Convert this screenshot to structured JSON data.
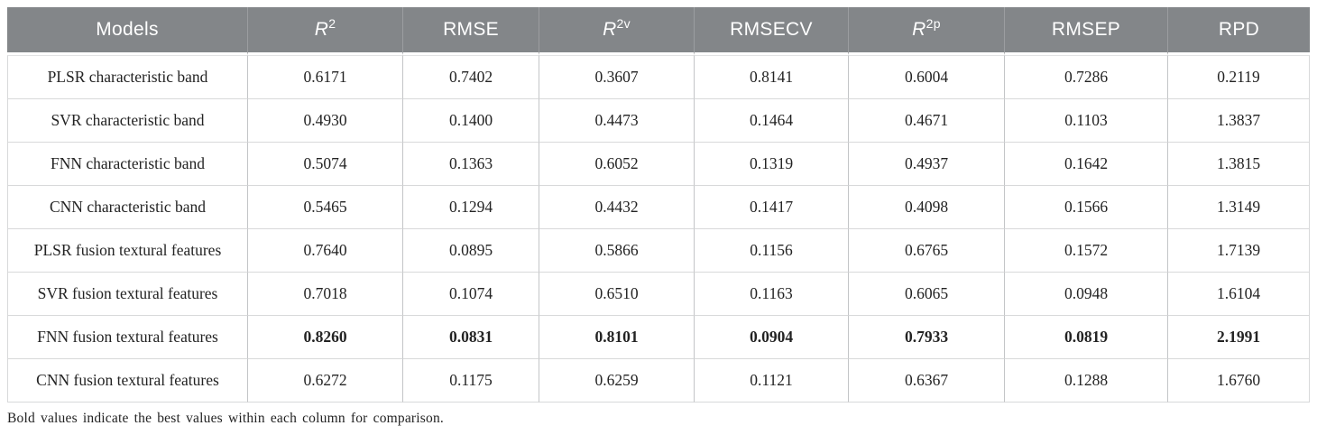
{
  "colors": {
    "header_bg": "#838689",
    "header_text": "#ffffff",
    "body_text": "#232323",
    "row_line": "#d8d9da",
    "column_line": "#c3c5c7"
  },
  "table": {
    "headers": [
      {
        "text": "Models",
        "sup": "",
        "italic": false
      },
      {
        "text": "R",
        "sup": "2",
        "italic": true
      },
      {
        "text": "RMSE",
        "sup": "",
        "italic": false
      },
      {
        "text": "R",
        "sup": "2v",
        "italic": true
      },
      {
        "text": "RMSECV",
        "sup": "",
        "italic": false
      },
      {
        "text": "R",
        "sup": "2p",
        "italic": true
      },
      {
        "text": "RMSEP",
        "sup": "",
        "italic": false
      },
      {
        "text": "RPD",
        "sup": "",
        "italic": false
      }
    ],
    "rows": [
      {
        "model": "PLSR characteristic band",
        "values": [
          "0.6171",
          "0.7402",
          "0.3607",
          "0.8141",
          "0.6004",
          "0.7286",
          "0.2119"
        ],
        "bold": false
      },
      {
        "model": "SVR characteristic band",
        "values": [
          "0.4930",
          "0.1400",
          "0.4473",
          "0.1464",
          "0.4671",
          "0.1103",
          "1.3837"
        ],
        "bold": false
      },
      {
        "model": "FNN characteristic band",
        "values": [
          "0.5074",
          "0.1363",
          "0.6052",
          "0.1319",
          "0.4937",
          "0.1642",
          "1.3815"
        ],
        "bold": false
      },
      {
        "model": "CNN characteristic band",
        "values": [
          "0.5465",
          "0.1294",
          "0.4432",
          "0.1417",
          "0.4098",
          "0.1566",
          "1.3149"
        ],
        "bold": false
      },
      {
        "model": "PLSR fusion textural features",
        "values": [
          "0.7640",
          "0.0895",
          "0.5866",
          "0.1156",
          "0.6765",
          "0.1572",
          "1.7139"
        ],
        "bold": false
      },
      {
        "model": "SVR fusion textural features",
        "values": [
          "0.7018",
          "0.1074",
          "0.6510",
          "0.1163",
          "0.6065",
          "0.0948",
          "1.6104"
        ],
        "bold": false
      },
      {
        "model": "FNN fusion textural features",
        "values": [
          "0.8260",
          "0.0831",
          "0.8101",
          "0.0904",
          "0.7933",
          "0.0819",
          "2.1991"
        ],
        "bold": true
      },
      {
        "model": "CNN fusion textural features",
        "values": [
          "0.6272",
          "0.1175",
          "0.6259",
          "0.1121",
          "0.6367",
          "0.1288",
          "1.6760"
        ],
        "bold": false
      }
    ]
  },
  "footnote": "Bold values indicate the best values within each column for comparison."
}
